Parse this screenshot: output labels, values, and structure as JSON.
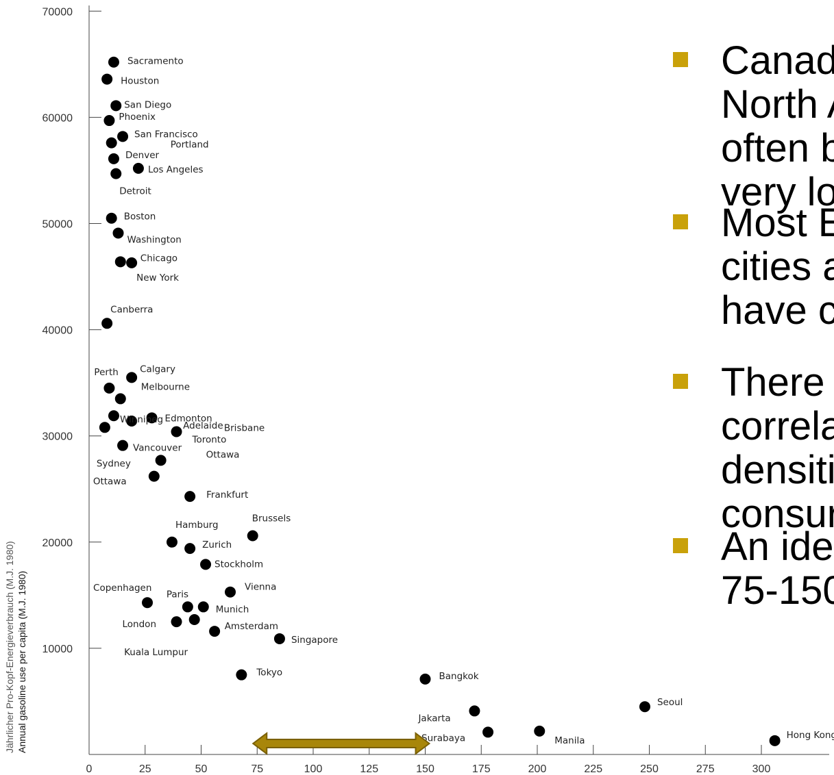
{
  "chart_data": {
    "type": "scatter",
    "xlabel": "",
    "ylabel": "Jährlicher Pro-Kopf-Energieverbrauch (M.J. 1980)",
    "ylabel2": "Annual gasoline use per capita (M.J. 1980)",
    "xlim": [
      0,
      325
    ],
    "ylim": [
      0,
      70000
    ],
    "x_ticks": [
      0,
      25,
      50,
      75,
      100,
      125,
      150,
      175,
      200,
      225,
      250,
      275,
      300
    ],
    "y_ticks": [
      10000,
      20000,
      30000,
      40000,
      50000,
      60000,
      70000
    ],
    "grid": false,
    "points": [
      {
        "label": "Sacramento",
        "x": 11,
        "y": 65200
      },
      {
        "label": "Houston",
        "x": 8,
        "y": 63600
      },
      {
        "label": "San Diego",
        "x": 12,
        "y": 61100
      },
      {
        "label": "Phoenix",
        "x": 9,
        "y": 59700
      },
      {
        "label": "San Francisco",
        "x": 15,
        "y": 58200
      },
      {
        "label": "Portland",
        "x": 10,
        "y": 57600
      },
      {
        "label": "Denver",
        "x": 11,
        "y": 56100
      },
      {
        "label": "Los Angeles",
        "x": 22,
        "y": 55200
      },
      {
        "label": "Detroit",
        "x": 12,
        "y": 54700
      },
      {
        "label": "Boston",
        "x": 10,
        "y": 50500
      },
      {
        "label": "Washington",
        "x": 13,
        "y": 49100
      },
      {
        "label": "Chicago",
        "x": 14,
        "y": 46400
      },
      {
        "label": "New York",
        "x": 19,
        "y": 46300
      },
      {
        "label": "Canberra",
        "x": 8,
        "y": 40600
      },
      {
        "label": "Calgary",
        "x": 19,
        "y": 35500
      },
      {
        "label": "Perth",
        "x": 9,
        "y": 34500
      },
      {
        "label": "Melbourne",
        "x": 14,
        "y": 33500
      },
      {
        "label": "Winnipeg",
        "x": 11,
        "y": 31900
      },
      {
        "label": "Adelaide",
        "x": 19,
        "y": 31400
      },
      {
        "label": "Edmonton",
        "x": 28,
        "y": 31700
      },
      {
        "label": "Brisbane",
        "x": 7,
        "y": 30800
      },
      {
        "label": "Toronto",
        "x": 39,
        "y": 30400
      },
      {
        "label": "Vancouver",
        "x": 15,
        "y": 29100
      },
      {
        "label": "Ottawa",
        "x": 32,
        "y": 27700
      },
      {
        "label": "Sydney",
        "x": 29,
        "y": 26200
      },
      {
        "label": "Frankfurt",
        "x": 45,
        "y": 24300
      },
      {
        "label": "Brussels",
        "x": 73,
        "y": 20600
      },
      {
        "label": "Hamburg",
        "x": 37,
        "y": 20000
      },
      {
        "label": "Zurich",
        "x": 45,
        "y": 19400
      },
      {
        "label": "Stockholm",
        "x": 52,
        "y": 17900
      },
      {
        "label": "Vienna",
        "x": 63,
        "y": 15300
      },
      {
        "label": "Copenhagen",
        "x": 26,
        "y": 14300
      },
      {
        "label": "Paris",
        "x": 44,
        "y": 13900
      },
      {
        "label": "Munich",
        "x": 51,
        "y": 13900
      },
      {
        "label": "London",
        "x": 39,
        "y": 12500
      },
      {
        "label": "Amsterdam",
        "x": 47,
        "y": 12700
      },
      {
        "label": "Kuala Lumpur",
        "x": 56,
        "y": 11600
      },
      {
        "label": "Singapore",
        "x": 85,
        "y": 10900
      },
      {
        "label": "Tokyo",
        "x": 68,
        "y": 7500
      },
      {
        "label": "Bangkok",
        "x": 150,
        "y": 7100
      },
      {
        "label": "Jakarta",
        "x": 172,
        "y": 4100
      },
      {
        "label": "Seoul",
        "x": 248,
        "y": 4500
      },
      {
        "label": "Surabaya",
        "x": 178,
        "y": 2100
      },
      {
        "label": "Manila",
        "x": 201,
        "y": 2200
      },
      {
        "label": "Hong Kong",
        "x": 306,
        "y": 1300
      }
    ],
    "highlight_range": {
      "from": 75,
      "to": 150,
      "color": "#a8860a"
    },
    "label_extra": {
      "ottawa_second": "Ottawa"
    }
  },
  "bullets": {
    "color": "#c9a10a",
    "items": [
      {
        "lines": [
          "Canad",
          "North A",
          "often b",
          "very lo"
        ]
      },
      {
        "lines": [
          "Most E",
          "cities a",
          "have c"
        ]
      },
      {
        "lines": [
          "There",
          "correla",
          "densiti",
          "consur"
        ]
      },
      {
        "lines": [
          "An ide",
          "75-150"
        ]
      }
    ]
  }
}
